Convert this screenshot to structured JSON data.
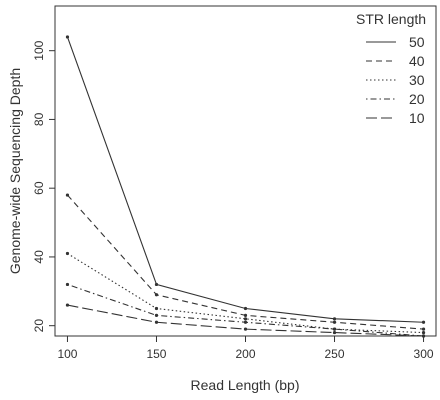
{
  "chart_data": {
    "type": "line",
    "title": "",
    "xlabel": "Read Length (bp)",
    "ylabel": "Genome-wide Sequencing Depth",
    "x": [
      100,
      150,
      200,
      250,
      300
    ],
    "xticks": [
      100,
      150,
      200,
      250,
      300
    ],
    "yticks": [
      20,
      40,
      60,
      80,
      100
    ],
    "xlim": [
      93,
      307
    ],
    "ylim": [
      17,
      113
    ],
    "grid": false,
    "legend": {
      "title": "STR length",
      "placement": "top-right",
      "entries": [
        "50",
        "40",
        "30",
        "20",
        "10"
      ]
    },
    "series": [
      {
        "name": "50",
        "values": [
          104,
          32,
          25,
          22,
          21
        ],
        "dash": "solid"
      },
      {
        "name": "40",
        "values": [
          58,
          29,
          23,
          21,
          19
        ],
        "dash": "dashed"
      },
      {
        "name": "30",
        "values": [
          41,
          25,
          22,
          19,
          18
        ],
        "dash": "dotted"
      },
      {
        "name": "20",
        "values": [
          32,
          23,
          21,
          19,
          17
        ],
        "dash": "dotdash"
      },
      {
        "name": "10",
        "values": [
          26,
          21,
          19,
          18,
          17
        ],
        "dash": "longdash"
      }
    ],
    "line_color": "#333333"
  }
}
